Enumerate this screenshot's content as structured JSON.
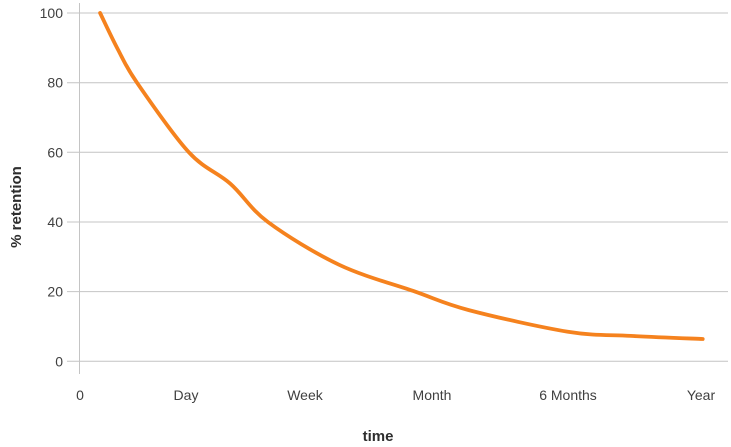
{
  "chart_data": {
    "type": "line",
    "title": "",
    "xlabel": "time",
    "ylabel": "% retention",
    "x_tick_labels": [
      "0",
      "Day",
      "Week",
      "Month",
      "6 Months",
      "Year"
    ],
    "x_tick_positions": [
      0,
      0.1636,
      0.3472,
      0.5432,
      0.7531,
      0.9583
    ],
    "y_ticks": [
      100,
      80,
      60,
      40,
      20,
      0
    ],
    "ylim": [
      0,
      100
    ],
    "grid": "horizontal-only",
    "legend": "none",
    "readings_at_ticks": {
      "start": 100,
      "Day": 60,
      "Week": 32,
      "Month": 18,
      "6 Months": 8.5,
      "Year": 6.4
    },
    "series": [
      {
        "name": "retention",
        "color": "#F5821E",
        "points": [
          [
            0.031,
            100
          ],
          [
            0.0586,
            89.5
          ],
          [
            0.088,
            80
          ],
          [
            0.168,
            60
          ],
          [
            0.232,
            51
          ],
          [
            0.29,
            40
          ],
          [
            0.4,
            27.7
          ],
          [
            0.517,
            20
          ],
          [
            0.6,
            14.7
          ],
          [
            0.753,
            8.5
          ],
          [
            0.85,
            7.3
          ],
          [
            0.961,
            6.4
          ]
        ]
      }
    ],
    "colors": {
      "curve": "#F5821E",
      "grid": "#C4C4C4",
      "axis_line": "#C4C4C4",
      "tick_text": "#404040",
      "title_text": "#2E2E2E",
      "background": "#FFFFFF"
    }
  }
}
